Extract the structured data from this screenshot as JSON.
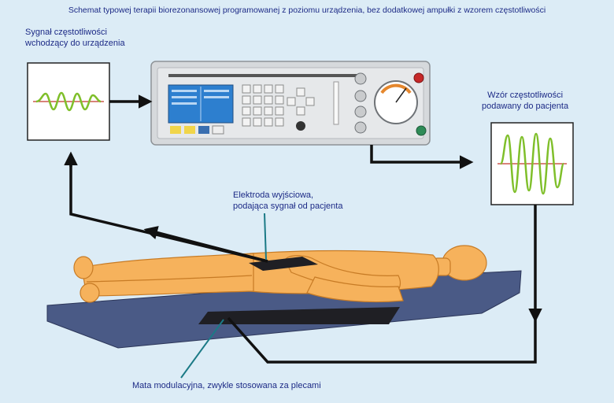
{
  "title": "Schemat typowej terapii biorezonansowej programowanej z poziomu urządzenia, bez dodatkowej ampułki z wzorem częstotliwości",
  "labels": {
    "input_signal_line1": "Sygnał częstotliwości",
    "input_signal_line2": "wchodzący do urządzenia",
    "output_pattern_line1": "Wzór częstotliwości",
    "output_pattern_line2": "podawany do pacjenta",
    "electrode_line1": "Elektroda wyjściowa,",
    "electrode_line2": "podająca sygnał od pacjenta",
    "mat": "Mata modulacyjna, zwykle stosowana za plecami"
  },
  "colors": {
    "background": "#dcecf6",
    "text": "#1c2a86",
    "arrow": "#111111",
    "wave_green": "#7fbf2a",
    "wave_axis": "#c0392b",
    "body": "#f6b25c",
    "mat": "#4a5a86",
    "device": "#d6d9dc",
    "screen": "#2d7fcf"
  }
}
